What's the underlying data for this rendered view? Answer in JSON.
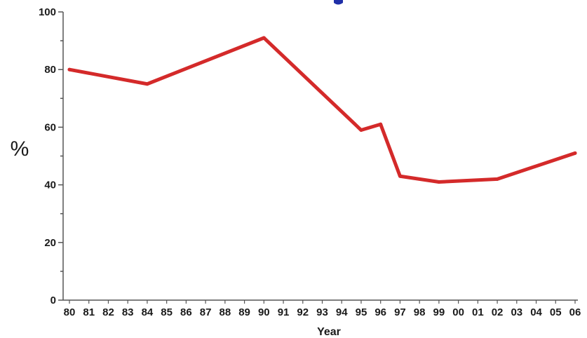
{
  "chart_data": {
    "type": "line",
    "title": "",
    "xlabel": "Year",
    "ylabel": "%",
    "ylim": [
      0,
      100
    ],
    "y_ticks": [
      "0",
      "20",
      "40",
      "60",
      "80",
      "100"
    ],
    "x_tick_labels": [
      "80",
      "81",
      "82",
      "83",
      "84",
      "85",
      "86",
      "87",
      "88",
      "89",
      "90",
      "91",
      "92",
      "93",
      "94",
      "95",
      "96",
      "97",
      "98",
      "99",
      "00",
      "01",
      "02",
      "03",
      "04",
      "05",
      "06"
    ],
    "grid": false,
    "legend": "none",
    "series": [
      {
        "color": "#d42a2a",
        "points": [
          {
            "x": "80",
            "y": 80
          },
          {
            "x": "84",
            "y": 75
          },
          {
            "x": "90",
            "y": 91
          },
          {
            "x": "95",
            "y": 59
          },
          {
            "x": "96",
            "y": 61
          },
          {
            "x": "97",
            "y": 43
          },
          {
            "x": "99",
            "y": 41
          },
          {
            "x": "02",
            "y": 42
          },
          {
            "x": "06",
            "y": 51
          }
        ]
      }
    ]
  }
}
